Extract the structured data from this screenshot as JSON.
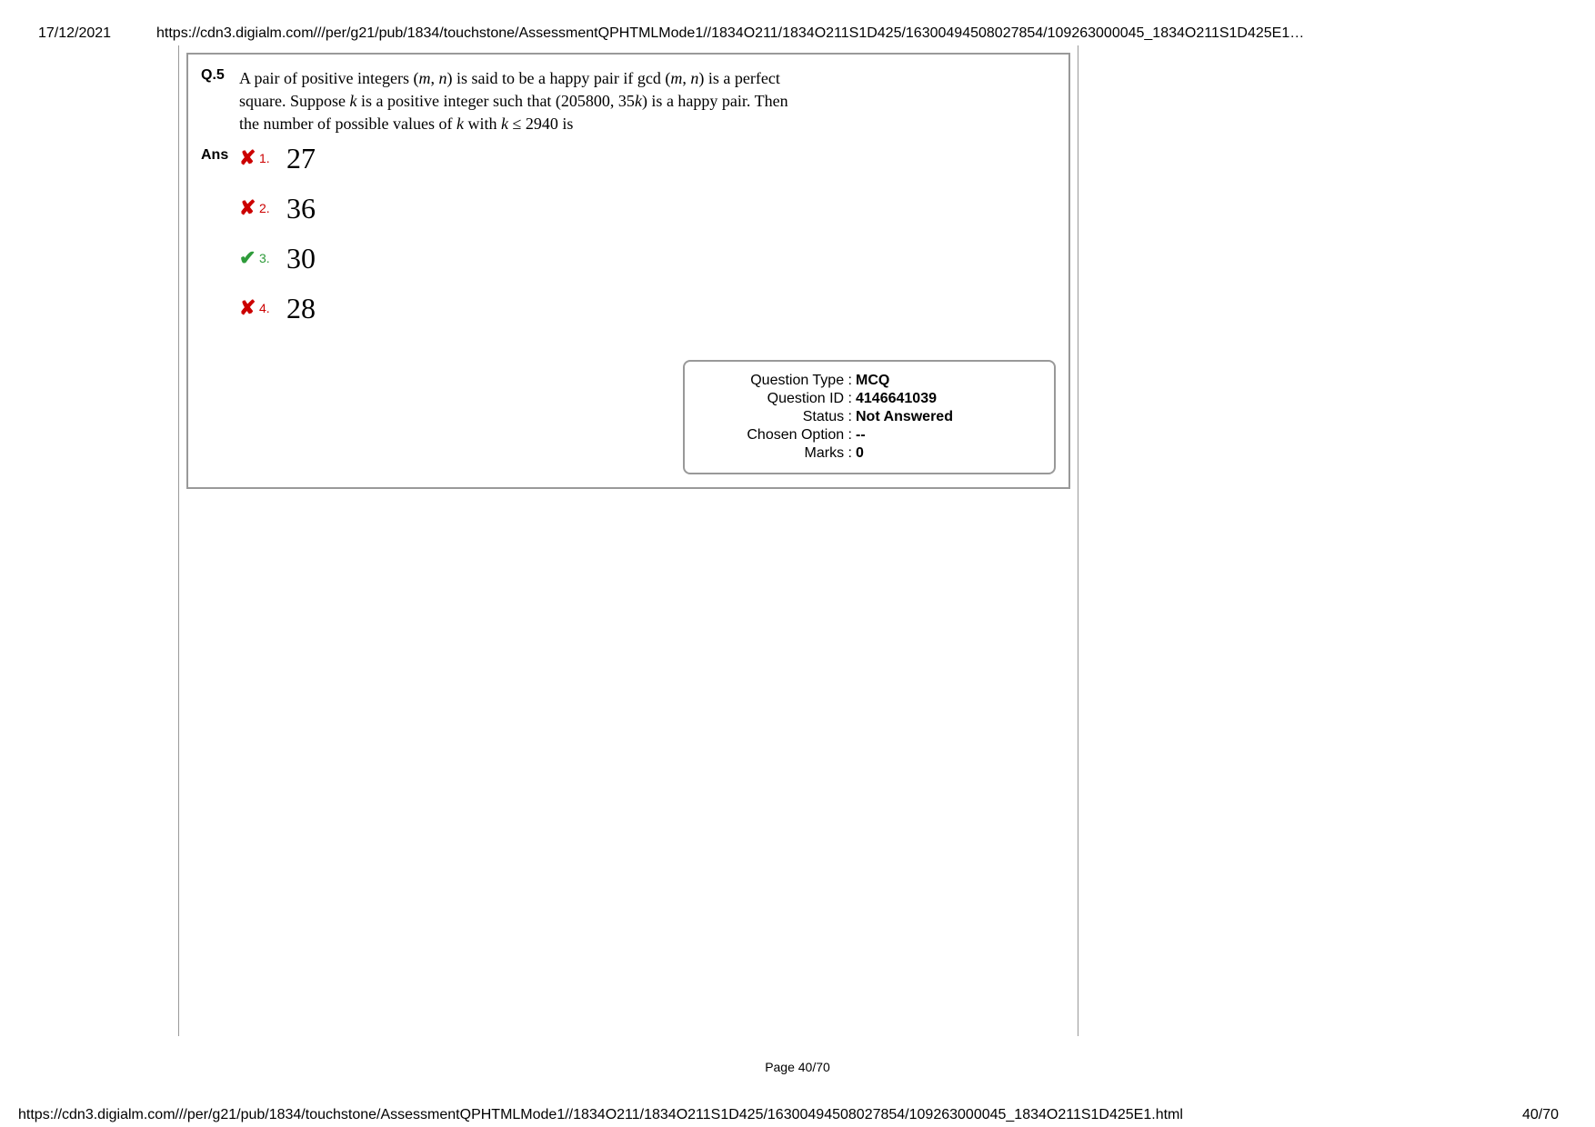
{
  "header": {
    "date": "17/12/2021",
    "url_top": "https://cdn3.digialm.com///per/g21/pub/1834/touchstone/AssessmentQPHTMLMode1//1834O211/1834O211S1D425/16300494508027854/109263000045_1834O211S1D425E1…"
  },
  "question": {
    "label": "Q.5",
    "text_line1": "A pair of positive integers (m, n) is said to be a happy pair if gcd (m, n) is a perfect",
    "text_line2": "square. Suppose k is a positive integer such that (205800, 35k) is a happy pair. Then",
    "text_line3": "the number of possible values of k with k ≤ 2940 is"
  },
  "ans_label": "Ans",
  "options": [
    {
      "num": "1.",
      "value": "27",
      "correct": false
    },
    {
      "num": "2.",
      "value": "36",
      "correct": false
    },
    {
      "num": "3.",
      "value": "30",
      "correct": true
    },
    {
      "num": "4.",
      "value": "28",
      "correct": false
    }
  ],
  "info": {
    "rows": [
      {
        "label": "Question Type :",
        "value": "MCQ"
      },
      {
        "label": "Question ID :",
        "value": "4146641039"
      },
      {
        "label": "Status :",
        "value": "Not Answered"
      },
      {
        "label": "Chosen Option :",
        "value": "--"
      },
      {
        "label": "Marks :",
        "value": "0"
      }
    ]
  },
  "page_num": "Page 40/70",
  "footer": {
    "url_bottom": "https://cdn3.digialm.com///per/g21/pub/1834/touchstone/AssessmentQPHTMLMode1//1834O211/1834O211S1D425/16300494508027854/109263000045_1834O211S1D425E1.html",
    "pager": "40/70"
  },
  "colors": {
    "wrong": "#cc0000",
    "correct": "#2e9b3a",
    "border": "#999999",
    "text": "#000000",
    "background": "#ffffff"
  }
}
